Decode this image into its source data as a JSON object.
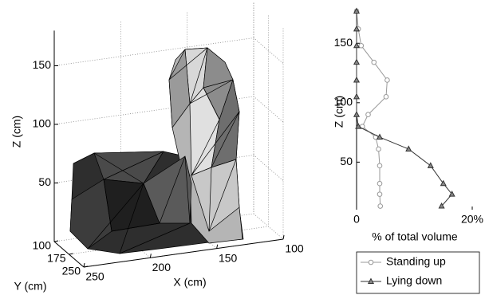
{
  "chart_data": [
    {
      "type": "mesh3d",
      "xlabel": "X (cm)",
      "ylabel": "Y (cm)",
      "zlabel": "Z (cm)",
      "xlim": [
        100,
        250
      ],
      "ylim": [
        100,
        250
      ],
      "zlim": [
        0,
        180
      ],
      "xticks": [
        250,
        200,
        150,
        100
      ],
      "yticks": [
        100,
        175,
        250
      ],
      "zticks": [
        50,
        100,
        150
      ],
      "grid": true
    },
    {
      "type": "line",
      "xlabel": "% of total volume",
      "ylabel": "Z (cm)",
      "y": [
        177,
        162,
        148,
        134,
        119,
        105,
        90,
        80,
        71,
        61,
        47,
        32,
        23,
        13
      ],
      "series": [
        {
          "name": "Standing up",
          "color": "#999999",
          "marker": "circle",
          "values": [
            0,
            0.3,
            0.8,
            3,
            5.3,
            5.1,
            2,
            1,
            3.3,
            3.8,
            4,
            4,
            4,
            4.1
          ]
        },
        {
          "name": "Lying down",
          "color": "#333333",
          "marker": "triangle",
          "values": [
            0,
            0,
            0,
            0,
            0,
            0,
            0,
            0.3,
            4,
            9,
            12.8,
            15,
            16.5,
            14.7
          ]
        }
      ],
      "xlim": [
        0,
        20
      ],
      "xticks": [
        0,
        {
          "value": 20,
          "label": "20%"
        }
      ],
      "ylim": [
        10,
        177
      ],
      "yticks": [
        50,
        100,
        150
      ],
      "legend": "below"
    }
  ]
}
